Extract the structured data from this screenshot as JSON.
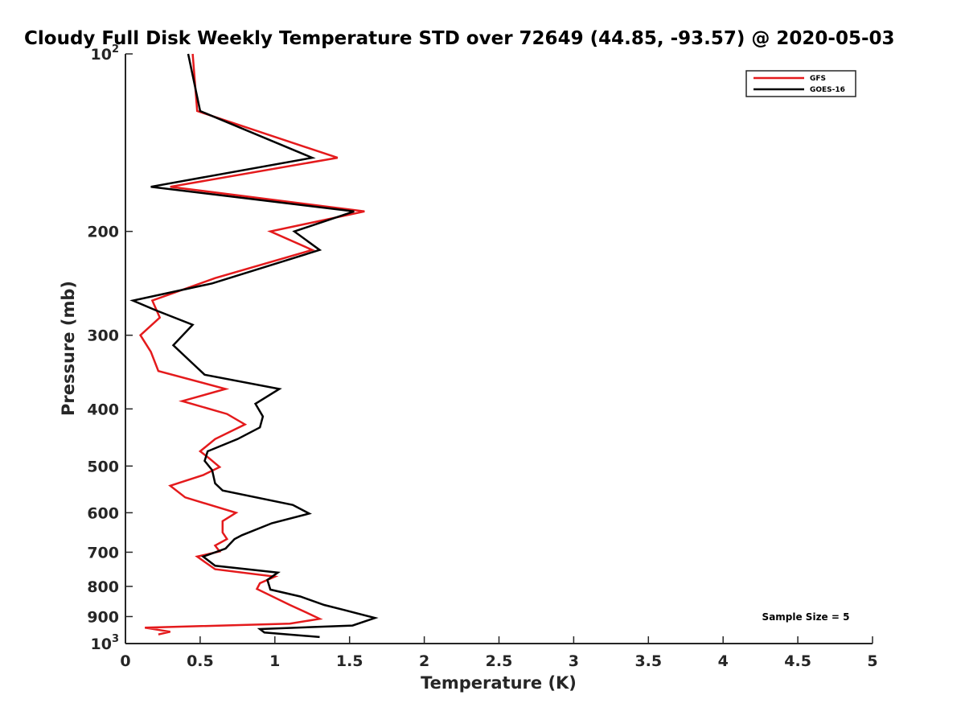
{
  "chart_data": {
    "type": "line",
    "title": "Cloudy Full Disk Weekly Temperature STD over 72649 (44.85, -93.57) @ 2020-05-03",
    "xlabel": "Temperature (K)",
    "ylabel": "Pressure (mb)",
    "xlim": [
      0,
      5
    ],
    "ylim": [
      100,
      1000
    ],
    "y_scale": "log",
    "y_reversed": true,
    "grid": false,
    "legend_position": "top-right",
    "x_ticks": [
      0,
      0.5,
      1,
      1.5,
      2,
      2.5,
      3,
      3.5,
      4,
      4.5,
      5
    ],
    "x_tick_labels": [
      "0",
      "0.5",
      "1",
      "1.5",
      "2",
      "2.5",
      "3",
      "3.5",
      "4",
      "4.5",
      "5"
    ],
    "y_ticks": [
      100,
      200,
      300,
      400,
      500,
      600,
      700,
      800,
      900,
      1000
    ],
    "y_tick_labels": [
      {
        "base": "10",
        "exp": "2"
      },
      {
        "base": "200",
        "exp": ""
      },
      {
        "base": "300",
        "exp": ""
      },
      {
        "base": "400",
        "exp": ""
      },
      {
        "base": "500",
        "exp": ""
      },
      {
        "base": "600",
        "exp": ""
      },
      {
        "base": "700",
        "exp": ""
      },
      {
        "base": "800",
        "exp": ""
      },
      {
        "base": "900",
        "exp": ""
      },
      {
        "base": "10",
        "exp": "3"
      }
    ],
    "annotation": "Sample Size = 5",
    "series": [
      {
        "name": "GFS",
        "color": "#e41a1c",
        "points": [
          [
            0.45,
            100
          ],
          [
            0.48,
            125
          ],
          [
            1.42,
            150
          ],
          [
            0.3,
            168
          ],
          [
            1.6,
            185
          ],
          [
            0.97,
            200
          ],
          [
            1.25,
            215
          ],
          [
            0.6,
            240
          ],
          [
            0.18,
            262
          ],
          [
            0.23,
            280
          ],
          [
            0.1,
            300
          ],
          [
            0.17,
            320
          ],
          [
            0.22,
            345
          ],
          [
            0.67,
            370
          ],
          [
            0.38,
            388
          ],
          [
            0.68,
            408
          ],
          [
            0.8,
            425
          ],
          [
            0.6,
            450
          ],
          [
            0.5,
            472
          ],
          [
            0.56,
            485
          ],
          [
            0.63,
            502
          ],
          [
            0.52,
            518
          ],
          [
            0.3,
            540
          ],
          [
            0.4,
            565
          ],
          [
            0.74,
            600
          ],
          [
            0.65,
            620
          ],
          [
            0.65,
            648
          ],
          [
            0.68,
            665
          ],
          [
            0.6,
            682
          ],
          [
            0.63,
            698
          ],
          [
            0.48,
            712
          ],
          [
            0.6,
            748
          ],
          [
            1.0,
            770
          ],
          [
            0.9,
            790
          ],
          [
            0.88,
            808
          ],
          [
            1.1,
            860
          ],
          [
            1.22,
            888
          ],
          [
            1.3,
            908
          ],
          [
            1.1,
            925
          ],
          [
            0.13,
            940
          ],
          [
            0.3,
            955
          ],
          [
            0.22,
            965
          ]
        ]
      },
      {
        "name": "GOES-16",
        "color": "#000000",
        "points": [
          [
            0.42,
            100
          ],
          [
            0.5,
            125
          ],
          [
            1.25,
            150
          ],
          [
            0.17,
            168
          ],
          [
            1.53,
            185
          ],
          [
            1.13,
            200
          ],
          [
            1.3,
            215
          ],
          [
            0.58,
            245
          ],
          [
            0.05,
            262
          ],
          [
            0.2,
            272
          ],
          [
            0.45,
            288
          ],
          [
            0.32,
            312
          ],
          [
            0.45,
            335
          ],
          [
            0.53,
            350
          ],
          [
            1.03,
            370
          ],
          [
            0.87,
            392
          ],
          [
            0.92,
            412
          ],
          [
            0.9,
            430
          ],
          [
            0.75,
            450
          ],
          [
            0.55,
            472
          ],
          [
            0.53,
            490
          ],
          [
            0.58,
            508
          ],
          [
            0.6,
            535
          ],
          [
            0.65,
            550
          ],
          [
            1.12,
            582
          ],
          [
            1.23,
            602
          ],
          [
            0.98,
            625
          ],
          [
            0.78,
            655
          ],
          [
            0.73,
            665
          ],
          [
            0.67,
            690
          ],
          [
            0.52,
            712
          ],
          [
            0.6,
            738
          ],
          [
            1.02,
            758
          ],
          [
            0.95,
            780
          ],
          [
            0.97,
            810
          ],
          [
            1.17,
            832
          ],
          [
            1.33,
            860
          ],
          [
            1.47,
            878
          ],
          [
            1.67,
            905
          ],
          [
            1.52,
            932
          ],
          [
            0.9,
            945
          ],
          [
            0.93,
            958
          ],
          [
            1.3,
            975
          ]
        ]
      }
    ]
  }
}
